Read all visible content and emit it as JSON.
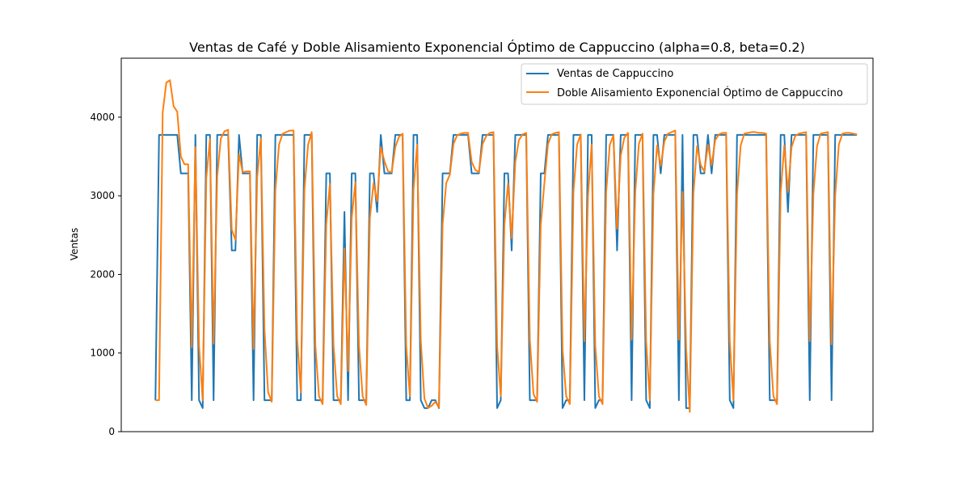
{
  "chart_data": {
    "type": "line",
    "title": "Ventas de Café y Doble Alisamiento Exponencial Óptimo de Cappuccino (alpha=0.8, beta=0.2)",
    "xlabel": "",
    "ylabel": "Ventas",
    "ylim": [
      0,
      4750
    ],
    "xlim": [
      -9.4,
      197.4
    ],
    "yticks": [
      0,
      1000,
      2000,
      3000,
      4000
    ],
    "xticks_shown": false,
    "grid": false,
    "legend_position": "top-right",
    "series": [
      {
        "name": "Ventas de Cappuccino",
        "color": "#1f77b4",
        "values": [
          400,
          3775,
          3775,
          3775,
          3775,
          3775,
          3775,
          3285,
          3285,
          3285,
          400,
          3775,
          400,
          300,
          3775,
          3775,
          400,
          3775,
          3775,
          3775,
          3775,
          2305,
          2305,
          3775,
          3285,
          3285,
          3285,
          400,
          3775,
          3775,
          400,
          400,
          400,
          3775,
          3775,
          3775,
          3775,
          3775,
          3775,
          400,
          400,
          3775,
          3775,
          3775,
          400,
          400,
          400,
          3285,
          3285,
          400,
          400,
          400,
          2795,
          400,
          3285,
          3285,
          400,
          400,
          400,
          3285,
          3285,
          2795,
          3775,
          3285,
          3285,
          3285,
          3775,
          3775,
          3775,
          400,
          400,
          3775,
          3775,
          400,
          300,
          300,
          400,
          400,
          300,
          3285,
          3285,
          3285,
          3775,
          3775,
          3775,
          3775,
          3775,
          3285,
          3285,
          3285,
          3775,
          3775,
          3775,
          3775,
          300,
          400,
          3285,
          3285,
          2305,
          3775,
          3775,
          3775,
          3775,
          400,
          400,
          400,
          3285,
          3285,
          3775,
          3775,
          3775,
          3775,
          300,
          400,
          400,
          3775,
          3775,
          3775,
          400,
          3775,
          3775,
          300,
          400,
          400,
          3775,
          3775,
          3775,
          2305,
          3775,
          3775,
          3775,
          400,
          3775,
          3775,
          3775,
          400,
          300,
          3775,
          3775,
          3285,
          3775,
          3775,
          3775,
          3775,
          400,
          3775,
          300,
          300,
          3775,
          3775,
          3285,
          3285,
          3775,
          3285,
          3775,
          3775,
          3775,
          3775,
          400,
          300,
          3775,
          3775,
          3775,
          3775,
          3775,
          3775,
          3775,
          3775,
          3775,
          400,
          400,
          400,
          3775,
          3775,
          2795,
          3775,
          3775,
          3775,
          3775,
          3775,
          400,
          3775,
          3775,
          3775,
          3775,
          3775,
          400,
          3775,
          3775,
          3775,
          3775,
          3775,
          3775,
          3775
        ]
      },
      {
        "name": "Doble Alisamiento Exponencial Óptimo de Cappuccino",
        "color": "#ff7f0e",
        "values": [
          400,
          400,
          4060,
          4440,
          4470,
          4140,
          4070,
          3500,
          3400,
          3400,
          1070,
          3620,
          1100,
          400,
          3230,
          3720,
          1120,
          3250,
          3730,
          3820,
          3840,
          2570,
          2440,
          3530,
          3300,
          3310,
          3310,
          1050,
          3240,
          3730,
          1300,
          500,
          380,
          3070,
          3650,
          3790,
          3810,
          3830,
          3830,
          1180,
          500,
          3080,
          3650,
          3810,
          1100,
          450,
          350,
          2640,
          3150,
          1100,
          450,
          350,
          2330,
          770,
          2720,
          3170,
          1100,
          450,
          340,
          2720,
          3160,
          2930,
          3620,
          3440,
          3310,
          3300,
          3620,
          3750,
          3790,
          1090,
          450,
          3080,
          3650,
          1160,
          420,
          300,
          330,
          380,
          310,
          2630,
          3160,
          3270,
          3660,
          3770,
          3790,
          3800,
          3800,
          3430,
          3330,
          3300,
          3660,
          3760,
          3800,
          3810,
          1090,
          450,
          2630,
          3160,
          2460,
          3430,
          3710,
          3780,
          3800,
          1170,
          480,
          380,
          2630,
          3160,
          3660,
          3780,
          3800,
          3810,
          1050,
          450,
          350,
          3050,
          3650,
          3780,
          1150,
          3000,
          3650,
          1100,
          450,
          350,
          3050,
          3650,
          3770,
          2580,
          3510,
          3740,
          3800,
          1170,
          3050,
          3660,
          3790,
          1150,
          400,
          3020,
          3640,
          3380,
          3690,
          3790,
          3810,
          3830,
          1170,
          3050,
          1050,
          250,
          3030,
          3630,
          3390,
          3310,
          3650,
          3390,
          3710,
          3780,
          3800,
          3800,
          1150,
          400,
          3020,
          3640,
          3790,
          3800,
          3810,
          3810,
          3800,
          3800,
          3790,
          1150,
          450,
          350,
          3040,
          3640,
          3050,
          3620,
          3760,
          3790,
          3800,
          3810,
          1150,
          3020,
          3630,
          3790,
          3800,
          3810,
          1110,
          3000,
          3650,
          3790,
          3800,
          3800,
          3790,
          3780
        ]
      }
    ]
  }
}
